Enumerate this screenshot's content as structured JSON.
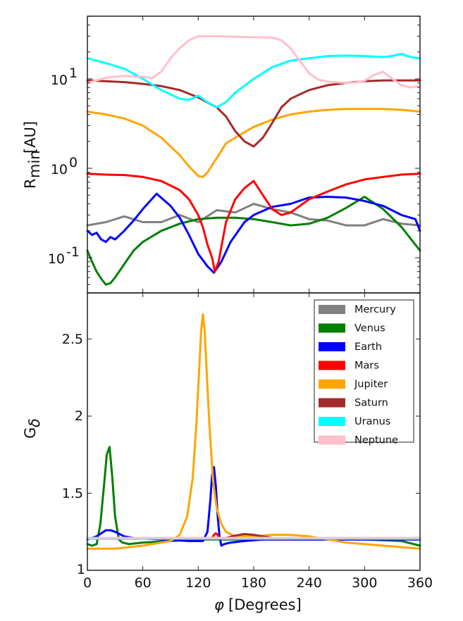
{
  "chart_data": [
    {
      "type": "line",
      "panel": "top",
      "title": "",
      "xlabel": "",
      "ylabel": "R_min [AU]",
      "ylabel_main": "R",
      "ylabel_sub": "min",
      "ylabel_unit": "[AU]",
      "yscale": "log",
      "xlim": [
        0,
        360
      ],
      "ylim": [
        0.04,
        50
      ],
      "yticks": [
        {
          "value": 10,
          "base": "10",
          "exp": "1"
        },
        {
          "value": 1,
          "base": "10",
          "exp": "0"
        },
        {
          "value": 0.1,
          "base": "10",
          "exp": "-1"
        }
      ],
      "series": [
        {
          "name": "Mercury",
          "color": "#808080",
          "x": [
            0,
            20,
            40,
            60,
            80,
            100,
            120,
            140,
            160,
            180,
            200,
            220,
            240,
            260,
            280,
            300,
            320,
            340,
            360
          ],
          "y": [
            0.23,
            0.25,
            0.29,
            0.25,
            0.25,
            0.3,
            0.25,
            0.34,
            0.32,
            0.4,
            0.35,
            0.32,
            0.27,
            0.26,
            0.23,
            0.23,
            0.27,
            0.24,
            0.23
          ]
        },
        {
          "name": "Venus",
          "color": "#008000",
          "x": [
            0,
            5,
            10,
            15,
            20,
            25,
            30,
            40,
            50,
            60,
            80,
            100,
            120,
            140,
            160,
            180,
            200,
            220,
            240,
            260,
            280,
            300,
            320,
            340,
            360
          ],
          "y": [
            0.12,
            0.09,
            0.07,
            0.058,
            0.05,
            0.052,
            0.06,
            0.085,
            0.12,
            0.15,
            0.2,
            0.24,
            0.27,
            0.28,
            0.28,
            0.27,
            0.25,
            0.23,
            0.24,
            0.28,
            0.36,
            0.48,
            0.35,
            0.22,
            0.12
          ]
        },
        {
          "name": "Earth",
          "color": "#0000ff",
          "x": [
            0,
            5,
            10,
            15,
            20,
            25,
            30,
            40,
            50,
            60,
            75,
            90,
            100,
            110,
            120,
            130,
            137,
            145,
            155,
            170,
            180,
            200,
            220,
            240,
            260,
            280,
            300,
            320,
            340,
            355,
            360
          ],
          "y": [
            0.2,
            0.18,
            0.19,
            0.16,
            0.15,
            0.17,
            0.16,
            0.2,
            0.26,
            0.35,
            0.52,
            0.38,
            0.28,
            0.18,
            0.11,
            0.08,
            0.068,
            0.09,
            0.15,
            0.25,
            0.3,
            0.37,
            0.4,
            0.47,
            0.48,
            0.47,
            0.43,
            0.38,
            0.3,
            0.27,
            0.2
          ]
        },
        {
          "name": "Mars",
          "color": "#ff0000",
          "x": [
            0,
            20,
            40,
            60,
            80,
            100,
            110,
            120,
            125,
            130,
            135,
            138,
            142,
            150,
            160,
            170,
            180,
            190,
            200,
            210,
            220,
            230,
            240,
            260,
            280,
            300,
            320,
            340,
            360
          ],
          "y": [
            0.87,
            0.85,
            0.84,
            0.8,
            0.72,
            0.57,
            0.45,
            0.3,
            0.22,
            0.14,
            0.1,
            0.07,
            0.09,
            0.25,
            0.45,
            0.6,
            0.72,
            0.5,
            0.35,
            0.3,
            0.32,
            0.38,
            0.45,
            0.55,
            0.66,
            0.75,
            0.8,
            0.85,
            0.87
          ]
        },
        {
          "name": "Jupiter",
          "color": "#ffa500",
          "x": [
            0,
            20,
            40,
            60,
            80,
            100,
            110,
            120,
            125,
            130,
            140,
            150,
            160,
            180,
            200,
            220,
            240,
            260,
            280,
            300,
            320,
            340,
            360
          ],
          "y": [
            4.3,
            4.0,
            3.6,
            3.0,
            2.2,
            1.4,
            1.05,
            0.82,
            0.8,
            0.9,
            1.3,
            1.9,
            2.2,
            2.9,
            3.5,
            4.0,
            4.3,
            4.5,
            4.6,
            4.6,
            4.6,
            4.5,
            4.3
          ]
        },
        {
          "name": "Saturn",
          "color": "#a52a2a",
          "x": [
            0,
            20,
            40,
            60,
            80,
            100,
            120,
            140,
            150,
            160,
            170,
            180,
            190,
            200,
            210,
            220,
            240,
            260,
            280,
            300,
            320,
            340,
            360
          ],
          "y": [
            9.6,
            9.4,
            9.2,
            8.8,
            8.3,
            7.5,
            6.2,
            4.8,
            3.8,
            2.6,
            2.0,
            1.75,
            2.2,
            3.2,
            4.8,
            6.0,
            7.5,
            8.5,
            9.0,
            9.4,
            9.6,
            9.6,
            9.6
          ]
        },
        {
          "name": "Uranus",
          "color": "#00ffff",
          "x": [
            0,
            20,
            40,
            60,
            80,
            100,
            110,
            120,
            130,
            140,
            150,
            160,
            180,
            200,
            220,
            240,
            260,
            280,
            300,
            320,
            330,
            340,
            350,
            360
          ],
          "y": [
            17,
            15,
            13,
            10,
            7.5,
            6,
            5.8,
            6.5,
            5.5,
            4.8,
            5.5,
            7,
            10,
            13.5,
            16,
            17,
            18,
            18.2,
            18,
            17.5,
            18,
            19,
            17.5,
            17
          ]
        },
        {
          "name": "Neptune",
          "color": "#ffc0cb",
          "x": [
            0,
            20,
            40,
            60,
            70,
            80,
            90,
            100,
            110,
            120,
            140,
            160,
            180,
            200,
            210,
            220,
            230,
            240,
            250,
            260,
            280,
            290,
            300,
            310,
            320,
            330,
            340,
            350,
            360
          ],
          "y": [
            9,
            10.3,
            10.8,
            10.5,
            10.2,
            12,
            17,
            22,
            27,
            30,
            30,
            29.5,
            29.2,
            29,
            27,
            22,
            16,
            11.5,
            9.8,
            9.3,
            9,
            9.1,
            9.5,
            11,
            12,
            10,
            8.5,
            8,
            8.4
          ]
        }
      ]
    },
    {
      "type": "line",
      "panel": "bottom",
      "title": "",
      "xlabel": "φ [Degrees]",
      "xlabel_symbol": "φ",
      "xlabel_unit": "[Degrees]",
      "ylabel": "G_δ",
      "ylabel_main": "G",
      "ylabel_sub": "δ",
      "yscale": "linear",
      "xlim": [
        0,
        360
      ],
      "ylim": [
        1,
        2.8
      ],
      "xticks": [
        "0",
        "60",
        "120",
        "180",
        "240",
        "300",
        "360"
      ],
      "yticks": [
        "1",
        "1.5",
        "2",
        "2.5"
      ],
      "ytick_values": [
        1,
        1.5,
        2,
        2.5
      ],
      "xtick_values": [
        0,
        60,
        120,
        180,
        240,
        300,
        360
      ],
      "legend": {
        "placement": "top-right",
        "entries": [
          "Mercury",
          "Venus",
          "Earth",
          "Mars",
          "Jupiter",
          "Saturn",
          "Uranus",
          "Neptune"
        ]
      },
      "series": [
        {
          "name": "Mercury",
          "color": "#808080",
          "x": [
            0,
            360
          ],
          "y": [
            1.21,
            1.21
          ]
        },
        {
          "name": "Venus",
          "color": "#008000",
          "x": [
            0,
            5,
            10,
            14,
            18,
            21,
            24,
            27,
            30,
            34,
            38,
            45,
            60,
            90,
            120,
            150,
            180,
            240,
            300,
            340,
            360
          ],
          "y": [
            1.17,
            1.16,
            1.17,
            1.3,
            1.55,
            1.75,
            1.8,
            1.6,
            1.35,
            1.2,
            1.18,
            1.17,
            1.18,
            1.19,
            1.2,
            1.2,
            1.2,
            1.2,
            1.2,
            1.19,
            1.16
          ]
        },
        {
          "name": "Earth",
          "color": "#0000ff",
          "x": [
            0,
            10,
            20,
            25,
            30,
            40,
            50,
            80,
            110,
            125,
            130,
            133,
            135,
            137,
            139,
            141,
            143,
            145,
            148,
            155,
            170,
            190,
            240,
            300,
            360
          ],
          "y": [
            1.2,
            1.22,
            1.26,
            1.26,
            1.25,
            1.22,
            1.21,
            1.2,
            1.19,
            1.19,
            1.25,
            1.45,
            1.62,
            1.67,
            1.55,
            1.35,
            1.22,
            1.16,
            1.17,
            1.18,
            1.19,
            1.2,
            1.2,
            1.2,
            1.2
          ]
        },
        {
          "name": "Mars",
          "color": "#ff0000",
          "x": [
            0,
            135,
            137,
            139,
            141,
            143,
            145,
            360
          ],
          "y": [
            1.21,
            1.21,
            1.23,
            1.24,
            1.23,
            1.21,
            1.21,
            1.21
          ]
        },
        {
          "name": "Jupiter",
          "color": "#ffa500",
          "x": [
            0,
            30,
            60,
            90,
            100,
            108,
            114,
            118,
            121,
            123,
            125,
            127,
            129,
            132,
            136,
            140,
            145,
            150,
            160,
            180,
            200,
            220,
            240,
            260,
            280,
            300,
            320,
            340,
            360
          ],
          "y": [
            1.14,
            1.14,
            1.16,
            1.19,
            1.23,
            1.35,
            1.6,
            1.95,
            2.3,
            2.55,
            2.66,
            2.55,
            2.3,
            1.95,
            1.58,
            1.4,
            1.3,
            1.25,
            1.22,
            1.22,
            1.23,
            1.23,
            1.22,
            1.2,
            1.18,
            1.17,
            1.16,
            1.15,
            1.14
          ]
        },
        {
          "name": "Saturn",
          "color": "#a52a2a",
          "x": [
            0,
            150,
            160,
            170,
            180,
            190,
            200,
            320
          ],
          "y": [
            1.21,
            1.21,
            1.225,
            1.235,
            1.23,
            1.22,
            1.21,
            1.21
          ]
        },
        {
          "name": "Uranus",
          "color": "#00ffff",
          "x": [
            0,
            360
          ],
          "y": [
            1.205,
            1.205
          ]
        },
        {
          "name": "Neptune",
          "color": "#ffc0cb",
          "x": [
            0,
            360
          ],
          "y": [
            1.21,
            1.21
          ]
        }
      ]
    }
  ]
}
